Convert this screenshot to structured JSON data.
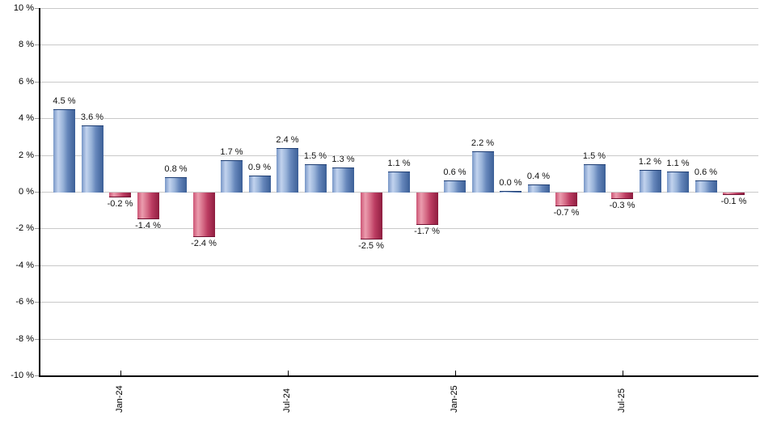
{
  "chart_data": {
    "type": "bar",
    "title": "",
    "xlabel": "",
    "ylabel": "",
    "ylim": [
      -10,
      10
    ],
    "grid": true,
    "legend": "none",
    "value_suffix": " %",
    "values": [
      {
        "v": 4.5,
        "label": "4.5 %"
      },
      {
        "v": 3.6,
        "label": "3.6 %"
      },
      {
        "v": -0.2,
        "label": "-0.2 %"
      },
      {
        "v": -1.4,
        "label": "-1.4 %"
      },
      {
        "v": 0.8,
        "label": "0.8 %"
      },
      {
        "v": -2.4,
        "label": "-2.4 %"
      },
      {
        "v": 1.7,
        "label": "1.7 %"
      },
      {
        "v": 0.9,
        "label": "0.9 %"
      },
      {
        "v": 2.4,
        "label": "2.4 %"
      },
      {
        "v": 1.5,
        "label": "1.5 %"
      },
      {
        "v": 1.3,
        "label": "1.3 %"
      },
      {
        "v": -2.5,
        "label": "-2.5 %"
      },
      {
        "v": 1.1,
        "label": "1.1 %"
      },
      {
        "v": -1.7,
        "label": "-1.7 %"
      },
      {
        "v": 0.6,
        "label": "0.6 %"
      },
      {
        "v": 2.2,
        "label": "2.2 %"
      },
      {
        "v": 0.0,
        "label": "0.0 %"
      },
      {
        "v": 0.4,
        "label": "0.4 %"
      },
      {
        "v": -0.7,
        "label": "-0.7 %"
      },
      {
        "v": 1.5,
        "label": "1.5 %"
      },
      {
        "v": -0.3,
        "label": "-0.3 %"
      },
      {
        "v": 1.2,
        "label": "1.2 %"
      },
      {
        "v": 1.1,
        "label": "1.1 %"
      },
      {
        "v": 0.6,
        "label": "0.6 %"
      },
      {
        "v": -0.1,
        "label": "-0.1 %"
      }
    ],
    "x_ticks": [
      {
        "label": "Jan-24",
        "bar_index": 2
      },
      {
        "label": "Jul-24",
        "bar_index": 8
      },
      {
        "label": "Jan-25",
        "bar_index": 14
      },
      {
        "label": "Jul-25",
        "bar_index": 20
      }
    ],
    "y_ticks": [
      {
        "v": 10,
        "label": "10 %"
      },
      {
        "v": 8,
        "label": "8 %"
      },
      {
        "v": 6,
        "label": "6 %"
      },
      {
        "v": 4,
        "label": "4 %"
      },
      {
        "v": 2,
        "label": "2 %"
      },
      {
        "v": 0,
        "label": "0 %"
      },
      {
        "v": -2,
        "label": "-2 %"
      },
      {
        "v": -4,
        "label": "-4 %"
      },
      {
        "v": -6,
        "label": "-6 %"
      },
      {
        "v": -8,
        "label": "-8 %"
      },
      {
        "v": -10,
        "label": "-10 %"
      }
    ],
    "colors": {
      "positive_bar": "#6d8fc3",
      "negative_bar": "#c2456a",
      "gridline": "#c9c9c9",
      "axis": "#000000",
      "label_text": "#111111"
    }
  }
}
